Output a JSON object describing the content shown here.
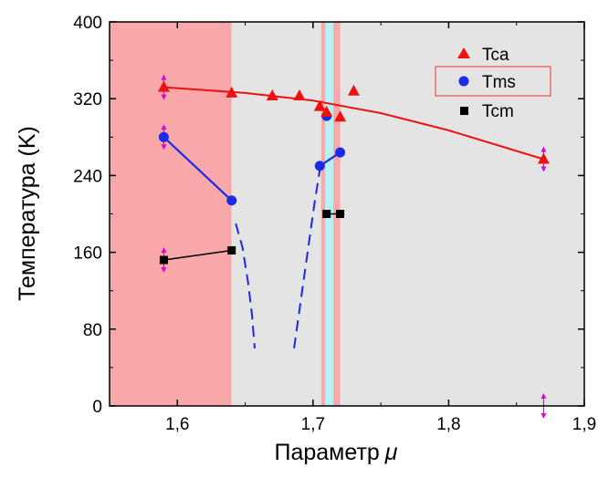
{
  "chart_data": {
    "type": "scatter",
    "xlabel": "Параметр",
    "xlabel_symbol": "μ",
    "ylabel": "Температура (K)",
    "xlim": [
      1.55,
      1.9
    ],
    "ylim": [
      0,
      400
    ],
    "x_ticks": [
      1.6,
      1.7,
      1.8,
      1.9
    ],
    "x_tick_labels": [
      "1,6",
      "1,7",
      "1,8",
      "1,9"
    ],
    "y_ticks": [
      0,
      80,
      160,
      240,
      320,
      400
    ],
    "y_tick_labels": [
      "0",
      "80",
      "160",
      "240",
      "320",
      "400"
    ],
    "grid": false,
    "legend_position": "top-right",
    "background_bands": [
      {
        "x0": 1.55,
        "x1": 1.64,
        "color": "#f8a8a8"
      },
      {
        "x0": 1.64,
        "x1": 1.9,
        "color": "#e4e4e4"
      },
      {
        "x0": 1.706,
        "x1": 1.709,
        "color": "#f8a8a8"
      },
      {
        "x0": 1.709,
        "x1": 1.715,
        "color": "#b9f0f3"
      },
      {
        "x0": 1.715,
        "x1": 1.72,
        "color": "#f8a8a8"
      }
    ],
    "series": [
      {
        "name": "Tca",
        "marker": "triangle",
        "color": "#ee1111",
        "points": [
          {
            "x": 1.59,
            "y": 332
          },
          {
            "x": 1.64,
            "y": 326
          },
          {
            "x": 1.67,
            "y": 323
          },
          {
            "x": 1.69,
            "y": 323
          },
          {
            "x": 1.705,
            "y": 312
          },
          {
            "x": 1.71,
            "y": 306
          },
          {
            "x": 1.72,
            "y": 301
          },
          {
            "x": 1.73,
            "y": 328
          },
          {
            "x": 1.87,
            "y": 257
          }
        ],
        "fit_curve": [
          {
            "x": 1.59,
            "y": 332
          },
          {
            "x": 1.65,
            "y": 326
          },
          {
            "x": 1.7,
            "y": 318
          },
          {
            "x": 1.75,
            "y": 305
          },
          {
            "x": 1.8,
            "y": 287
          },
          {
            "x": 1.87,
            "y": 257
          }
        ]
      },
      {
        "name": "Tms",
        "marker": "circle",
        "color": "#1a2ae6",
        "points": [
          {
            "x": 1.59,
            "y": 280
          },
          {
            "x": 1.64,
            "y": 214
          },
          {
            "x": 1.705,
            "y": 250
          },
          {
            "x": 1.71,
            "y": 302
          },
          {
            "x": 1.72,
            "y": 264
          }
        ],
        "solid_lines": [
          [
            {
              "x": 1.59,
              "y": 280
            },
            {
              "x": 1.64,
              "y": 214
            }
          ],
          [
            {
              "x": 1.705,
              "y": 250
            },
            {
              "x": 1.72,
              "y": 264
            }
          ]
        ],
        "dashed_lines": [
          [
            {
              "x": 1.643,
              "y": 190
            },
            {
              "x": 1.648,
              "y": 165
            },
            {
              "x": 1.652,
              "y": 130
            },
            {
              "x": 1.655,
              "y": 95
            },
            {
              "x": 1.657,
              "y": 60
            }
          ],
          [
            {
              "x": 1.686,
              "y": 60
            },
            {
              "x": 1.691,
              "y": 110
            },
            {
              "x": 1.696,
              "y": 160
            },
            {
              "x": 1.701,
              "y": 210
            },
            {
              "x": 1.705,
              "y": 246
            }
          ]
        ]
      },
      {
        "name": "Tcm",
        "marker": "square",
        "color": "#000000",
        "points": [
          {
            "x": 1.59,
            "y": 152
          },
          {
            "x": 1.64,
            "y": 162
          },
          {
            "x": 1.71,
            "y": 200
          },
          {
            "x": 1.72,
            "y": 200
          }
        ],
        "solid_lines": [
          [
            {
              "x": 1.59,
              "y": 152
            },
            {
              "x": 1.64,
              "y": 162
            }
          ],
          [
            {
              "x": 1.71,
              "y": 200
            },
            {
              "x": 1.72,
              "y": 200
            }
          ]
        ]
      }
    ],
    "error_markers": {
      "color": "#e000e0",
      "points": [
        {
          "x": 1.59,
          "y": 332
        },
        {
          "x": 1.59,
          "y": 280
        },
        {
          "x": 1.59,
          "y": 152
        },
        {
          "x": 1.87,
          "y": 257
        },
        {
          "x": 1.87,
          "y": 0
        }
      ]
    }
  }
}
